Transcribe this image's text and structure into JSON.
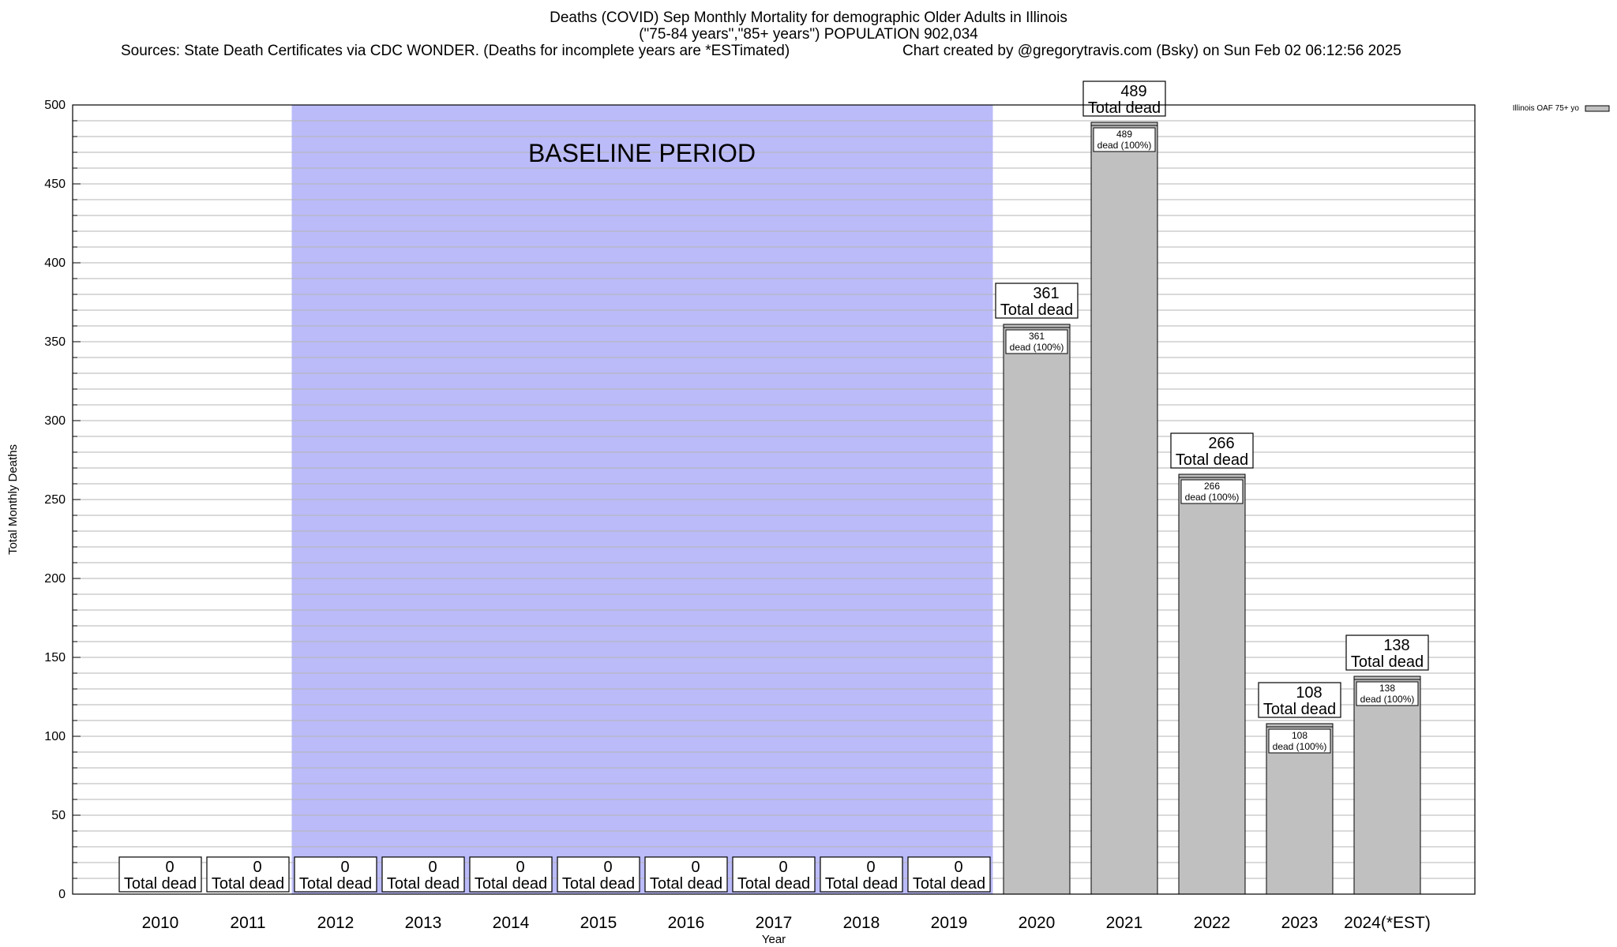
{
  "chart_title": {
    "line1": "Deaths (COVID) Sep Monthly Mortality for demographic Older Adults in Illinois",
    "line2": "(\"75-84 years\",\"85+ years\") POPULATION 902,034",
    "sources": "Sources: State Death Certificates via CDC WONDER. (Deaths for incomplete years are *ESTimated)",
    "credit": "Chart created by @gregorytravis.com (Bsky) on Sun Feb 02 06:12:56 2025"
  },
  "chart_data": {
    "type": "bar",
    "categories": [
      "2010",
      "2011",
      "2012",
      "2013",
      "2014",
      "2015",
      "2016",
      "2017",
      "2018",
      "2019",
      "2020",
      "2021",
      "2022",
      "2023",
      "2024(*EST)"
    ],
    "series": [
      {
        "name": "Illinois OAF 75+ yo",
        "values": [
          0,
          0,
          0,
          0,
          0,
          0,
          0,
          0,
          0,
          0,
          361,
          489,
          266,
          108,
          138
        ]
      }
    ],
    "total_label_suffix": "Total dead",
    "inner_label_suffix": "dead (100%)",
    "xlabel": "Year",
    "ylabel": "Total Monthly Deaths",
    "ylim": [
      0,
      500
    ],
    "yticks": [
      0,
      50,
      100,
      150,
      200,
      250,
      300,
      350,
      400,
      450,
      500
    ],
    "baseline": {
      "label": "BASELINE PERIOD",
      "from": "2012",
      "to": "2019"
    },
    "grid": true,
    "legend_position": "top-right",
    "colors": {
      "bar": "#c0c0c0",
      "baseline": "#bbbbf9",
      "grid": "#b4b4b4"
    }
  }
}
